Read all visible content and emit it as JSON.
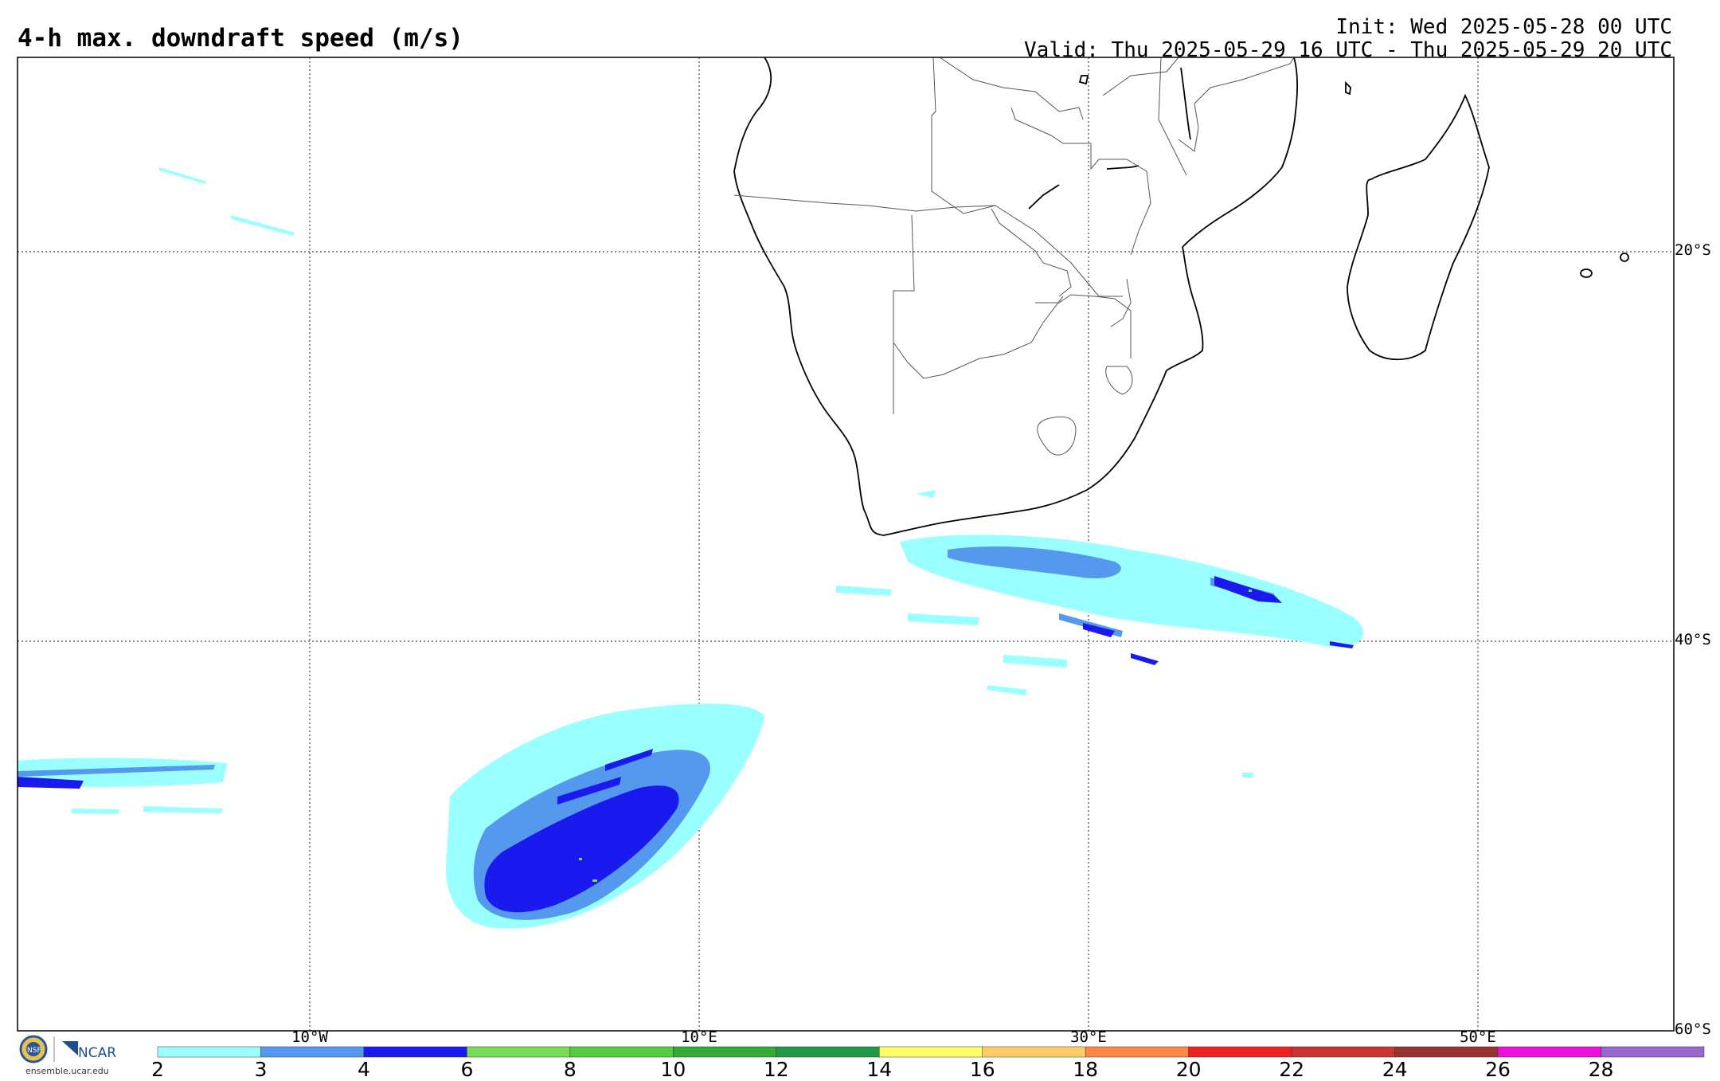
{
  "header": {
    "title": "4-h max. downdraft speed (m/s)",
    "init": "Init: Wed 2025-05-28 00 UTC",
    "valid": "Valid: Thu 2025-05-29 16 UTC - Thu 2025-05-29 20 UTC"
  },
  "map": {
    "lat_labels": [
      "20°S",
      "40°S",
      "60°S"
    ],
    "lon_labels": [
      "10°W",
      "10°E",
      "30°E",
      "50°E"
    ]
  },
  "colorbar": {
    "ticks": [
      "2",
      "3",
      "4",
      "6",
      "8",
      "10",
      "12",
      "14",
      "16",
      "18",
      "20",
      "22",
      "24",
      "26",
      "28"
    ],
    "colors": [
      "#99ffff",
      "#5599ee",
      "#1a1aee",
      "#77dd55",
      "#55cc44",
      "#33aa33",
      "#229944",
      "#ffff66",
      "#ffcc66",
      "#ff8844",
      "#ee2222",
      "#cc3333",
      "#993333",
      "#ee11dd",
      "#9966cc"
    ]
  },
  "branding": {
    "org": "NCAR",
    "org2": "NSF",
    "url": "ensemble.ucar.edu"
  }
}
